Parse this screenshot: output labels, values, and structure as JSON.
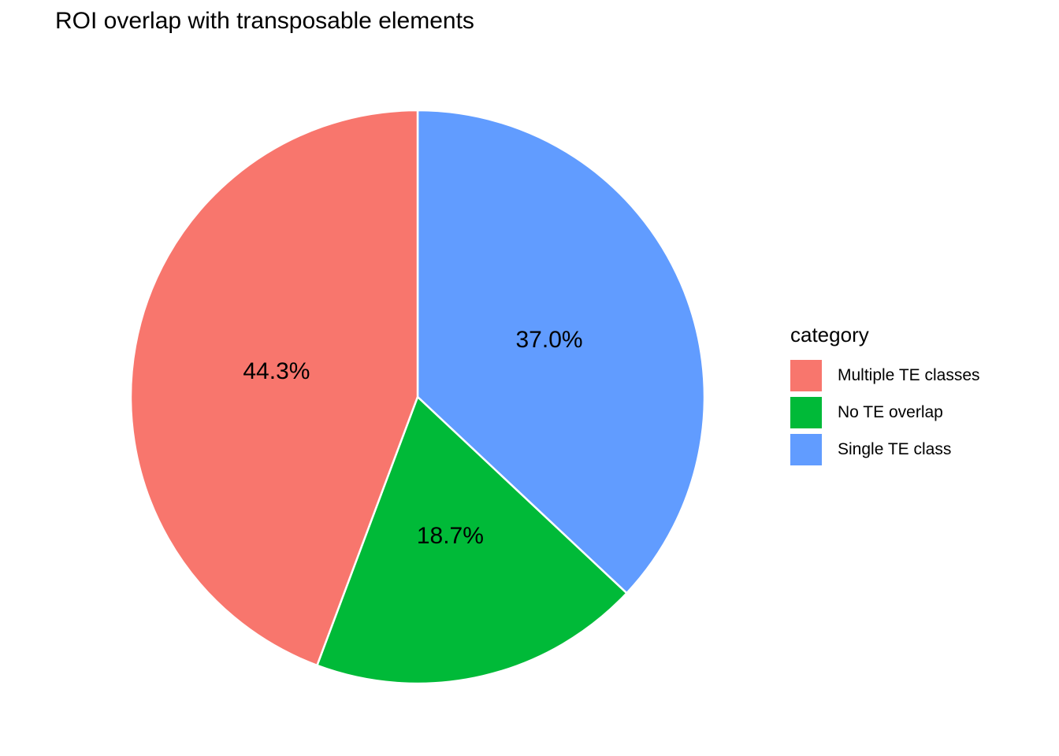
{
  "page": {
    "background": "#FFFFFF",
    "title": "ROI overlap with transposable elements"
  },
  "chart_data": {
    "type": "pie",
    "title": "ROI overlap with transposable elements",
    "legend_title": "category",
    "legend_position": "right",
    "start_angle": "12-oclock",
    "direction": "clockwise, slices drawn in reverse legend order (Single TE class, No TE overlap, Multiple TE classes)",
    "slices": [
      {
        "label": "Multiple TE classes",
        "value": 44.3,
        "display": "44.3%",
        "color": "#F8766D"
      },
      {
        "label": "No TE overlap",
        "value": 18.7,
        "display": "18.7%",
        "color": "#00BA38"
      },
      {
        "label": "Single TE class",
        "value": 37.0,
        "display": "37.0%",
        "color": "#619CFF"
      }
    ],
    "slice_border_color": "#FFFFFF",
    "label_color": "#000000",
    "text_color": "#000000"
  }
}
